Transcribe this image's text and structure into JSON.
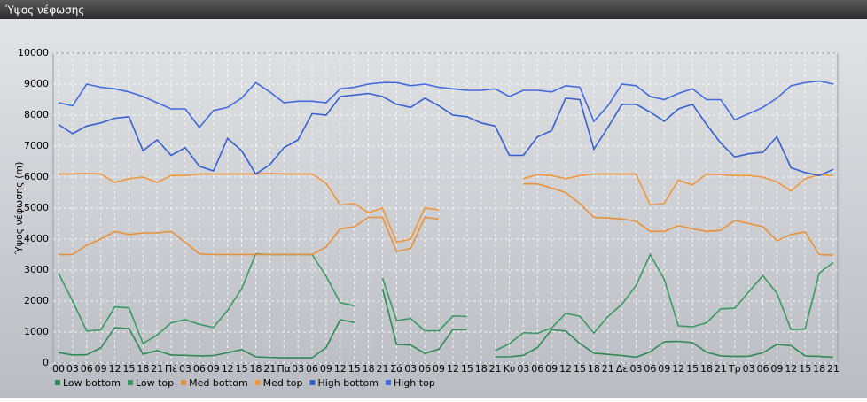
{
  "chart_data": {
    "type": "line",
    "title": "Ύψος νέφωσης",
    "y_label": "Ύψος νέφωσης (m)",
    "categories": [
      "00",
      "03",
      "06",
      "09",
      "12",
      "15",
      "18",
      "21",
      "Πέ",
      "03",
      "06",
      "09",
      "12",
      "15",
      "18",
      "21",
      "Πα",
      "03",
      "06",
      "09",
      "12",
      "15",
      "18",
      "21",
      "Σά",
      "03",
      "06",
      "09",
      "12",
      "15",
      "18",
      "21",
      "Κυ",
      "03",
      "06",
      "09",
      "12",
      "15",
      "18",
      "21",
      "Δε",
      "03",
      "06",
      "09",
      "12",
      "15",
      "18",
      "21",
      "Τρ",
      "03",
      "06",
      "09",
      "12",
      "15",
      "18",
      "21"
    ],
    "ylim": [
      0,
      10000
    ],
    "yticks": [
      0,
      1000,
      2000,
      3000,
      4000,
      5000,
      6000,
      7000,
      8000,
      9000,
      10000
    ],
    "grid": true,
    "series": [
      {
        "name": "Low bottom",
        "color": "#2f8a55",
        "values": [
          340,
          260,
          270,
          490,
          1140,
          1110,
          290,
          400,
          260,
          250,
          230,
          240,
          330,
          430,
          200,
          180,
          170,
          170,
          170,
          500,
          1400,
          1310,
          null,
          2400,
          600,
          580,
          310,
          450,
          1080,
          1080,
          null,
          200,
          200,
          250,
          500,
          1080,
          1030,
          630,
          320,
          280,
          240,
          190,
          360,
          690,
          700,
          660,
          350,
          230,
          210,
          220,
          330,
          600,
          560,
          230,
          210,
          190
        ]
      },
      {
        "name": "Low top",
        "color": "#3b9a64",
        "values": [
          2900,
          2000,
          1030,
          1070,
          1810,
          1780,
          630,
          900,
          1300,
          1400,
          1250,
          1150,
          1700,
          2400,
          3520,
          3500,
          3500,
          3500,
          3500,
          2800,
          1950,
          1850,
          null,
          2750,
          1370,
          1440,
          1040,
          1040,
          1520,
          1500,
          null,
          400,
          620,
          980,
          960,
          1130,
          1600,
          1510,
          970,
          1500,
          1900,
          2500,
          3500,
          2700,
          1200,
          1170,
          1300,
          1750,
          1770,
          2300,
          2820,
          2250,
          1080,
          1100,
          2900,
          3250
        ]
      },
      {
        "name": "Med bottom",
        "color": "#e8913a",
        "values": [
          3500,
          3500,
          3800,
          4000,
          4250,
          4150,
          4200,
          4200,
          4250,
          3900,
          3520,
          3500,
          3500,
          3500,
          3500,
          3500,
          3500,
          3500,
          3500,
          3750,
          4330,
          4400,
          4700,
          4700,
          3600,
          3700,
          4700,
          4650,
          null,
          null,
          null,
          null,
          null,
          5780,
          5780,
          5650,
          5500,
          5150,
          4700,
          4680,
          4650,
          4580,
          4250,
          4250,
          4430,
          4330,
          4250,
          4280,
          4600,
          4500,
          4400,
          3950,
          4150,
          4230,
          3500,
          3480
        ]
      },
      {
        "name": "Med top",
        "color": "#f0963c",
        "values": [
          6100,
          6100,
          6120,
          6100,
          5830,
          5950,
          6000,
          5830,
          6050,
          6050,
          6100,
          6100,
          6100,
          6100,
          6100,
          6120,
          6100,
          6100,
          6100,
          5800,
          5100,
          5150,
          4850,
          5000,
          3900,
          4000,
          5000,
          4950,
          null,
          null,
          null,
          null,
          null,
          5950,
          6080,
          6050,
          5950,
          6050,
          6100,
          6100,
          6100,
          6100,
          5100,
          5150,
          5900,
          5750,
          6100,
          6080,
          6050,
          6050,
          6000,
          5850,
          5550,
          5950,
          6080,
          6050
        ]
      },
      {
        "name": "High bottom",
        "color": "#3560d0",
        "values": [
          7700,
          7400,
          7650,
          7750,
          7900,
          7950,
          6850,
          7200,
          6700,
          6950,
          6350,
          6200,
          7250,
          6850,
          6100,
          6400,
          6950,
          7200,
          8050,
          8000,
          8600,
          8650,
          8700,
          8600,
          8350,
          8250,
          8550,
          8300,
          8000,
          7950,
          7750,
          7650,
          6700,
          6700,
          7300,
          7500,
          8550,
          8500,
          6900,
          7600,
          8350,
          8350,
          8100,
          7800,
          8200,
          8350,
          7700,
          7100,
          6650,
          6750,
          6800,
          7300,
          6300,
          6150,
          6050,
          6250
        ]
      },
      {
        "name": "High top",
        "color": "#3f6ae0",
        "values": [
          8400,
          8300,
          9000,
          8900,
          8850,
          8750,
          8600,
          8400,
          8200,
          8200,
          7600,
          8150,
          8250,
          8550,
          9050,
          8750,
          8400,
          8450,
          8450,
          8400,
          8850,
          8900,
          9000,
          9050,
          9050,
          8950,
          9000,
          8900,
          8850,
          8800,
          8800,
          8850,
          8600,
          8800,
          8800,
          8750,
          8950,
          8900,
          7800,
          8300,
          9000,
          8950,
          8600,
          8500,
          8700,
          8850,
          8500,
          8500,
          7850,
          8050,
          8250,
          8550,
          8950,
          9050,
          9100,
          9000
        ]
      }
    ]
  }
}
